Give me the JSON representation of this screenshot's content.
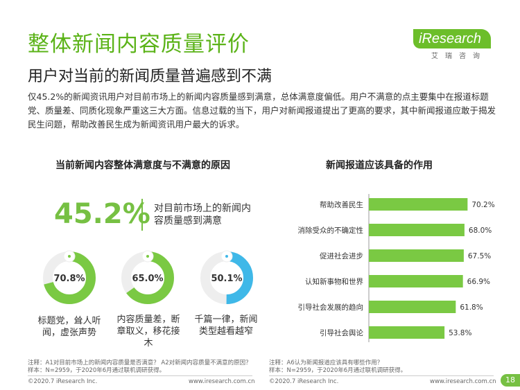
{
  "header": {
    "title": "整体新闻内容质量评价",
    "subtitle": "用户对当前的新闻质量普遍感到不满",
    "logo_text": "iResearch",
    "logo_cn": "艾瑞咨询"
  },
  "intro": "仅45.2%的新闻资讯用户对目前市场上的新闻内容质量感到满意，总体满意度偏低。用户不满意的点主要集中在报道标题党、质量差、同质化现象严重这三大方面。信息过载的当下，用户对新闻报道提出了更高的要求，其中新闻报道应敢于揭发民生问题，帮助改善民生成为新闻资讯用户最大的诉求。",
  "left_panel": {
    "title": "当前新闻内容整体满意度与不满意的原因",
    "satisfaction_value": "45.2%",
    "satisfaction_desc": "对目前市场上的新闻内容质量感到满意",
    "donuts": [
      {
        "value": "70.8%",
        "pct": 70.8,
        "label": "标题党，耸人听闻，虚张声势",
        "color": "#7ac943"
      },
      {
        "value": "65.0%",
        "pct": 65.0,
        "label": "内容质量差，断章取义，移花接木",
        "color": "#7ac943"
      },
      {
        "value": "50.1%",
        "pct": 50.1,
        "label": "千篇一律，新闻类型越看越窄",
        "color": "#3fb8e8"
      }
    ],
    "note_line1": "注释：A1对目前市场上的新闻内容质量是否满意？ A2对新闻内容质量不满意的原因？",
    "note_line2": "样本：N=2959，于2020年6月通过联机调研获得。",
    "copyright": "©2020.7 iResearch Inc.",
    "website": "www.iresearch.com.cn"
  },
  "right_panel": {
    "title": "新闻报道应该具备的作用",
    "note_line1": "注释：A6认为新闻报道应该具有哪些作用？",
    "note_line2": "样本：N=2959，于2020年6月通过联机调研获得。",
    "copyright": "©2020.7 iResearch Inc.",
    "website": "www.iresearch.com.cn"
  },
  "chart_data": {
    "type": "bar",
    "orientation": "horizontal",
    "title": "新闻报道应该具备的作用",
    "categories": [
      "帮助改善民生",
      "消除受众的不确定性",
      "促进社会进步",
      "认知新事物和世界",
      "引导社会发展的趋向",
      "引导社会舆论"
    ],
    "values": [
      70.2,
      68.0,
      67.5,
      66.9,
      61.8,
      53.8
    ],
    "value_labels": [
      "70.2%",
      "68.0%",
      "67.5%",
      "66.9%",
      "61.8%",
      "53.8%"
    ],
    "bar_color": "#7ac943",
    "xlim": [
      0,
      100
    ]
  },
  "page_number": "18"
}
